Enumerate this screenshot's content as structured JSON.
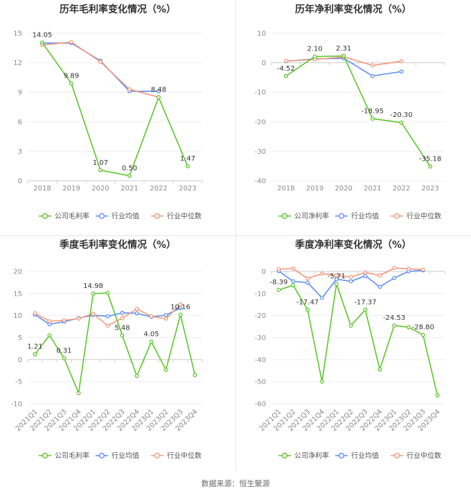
{
  "colors": {
    "company": "#5cc52b",
    "avg": "#5b8ff9",
    "median": "#f4987a",
    "axis": "#cccccc",
    "grid": "#eeeeee"
  },
  "legend": {
    "company_gross": "公司毛利率",
    "company_net": "公司净利率",
    "avg": "行业均值",
    "median": "行业中位数"
  },
  "source": "数据来源：恒生聚源",
  "chart_data": [
    {
      "type": "line",
      "title": "历年毛利率变化情况（%）",
      "categories": [
        "2018",
        "2019",
        "2020",
        "2021",
        "2022",
        "2023"
      ],
      "ylim": [
        0,
        15
      ],
      "yticks": [
        0,
        3,
        6,
        9,
        12,
        15
      ],
      "series": [
        {
          "name": "公司毛利率",
          "values": [
            14.05,
            9.89,
            1.07,
            0.5,
            8.48,
            1.47
          ]
        },
        {
          "name": "行业均值",
          "values": [
            14.0,
            14.0,
            12.2,
            9.1,
            9.1,
            null
          ]
        },
        {
          "name": "行业中位数",
          "values": [
            13.8,
            14.1,
            12.1,
            9.3,
            8.5,
            null
          ]
        }
      ],
      "labels": [
        {
          "i": 0,
          "text": "14.05"
        },
        {
          "i": 1,
          "text": "9.89"
        },
        {
          "i": 2,
          "text": "1.07"
        },
        {
          "i": 3,
          "text": "0.50"
        },
        {
          "i": 4,
          "text": "8.48"
        },
        {
          "i": 5,
          "text": "1.47"
        }
      ],
      "legend": [
        "公司毛利率",
        "行业均值",
        "行业中位数"
      ]
    },
    {
      "type": "line",
      "title": "历年净利率变化情况（%）",
      "categories": [
        "2018",
        "2019",
        "2020",
        "2021",
        "2022",
        "2023"
      ],
      "ylim": [
        -40,
        10
      ],
      "yticks": [
        -40,
        -30,
        -20,
        -10,
        0,
        10
      ],
      "series": [
        {
          "name": "公司净利率",
          "values": [
            -4.52,
            2.1,
            2.31,
            -18.95,
            -20.3,
            -35.18
          ]
        },
        {
          "name": "行业均值",
          "values": [
            0.5,
            1.3,
            1.5,
            -4.5,
            -3.0,
            null
          ]
        },
        {
          "name": "行业中位数",
          "values": [
            0.6,
            1.1,
            2.0,
            -0.9,
            0.5,
            null
          ]
        }
      ],
      "labels": [
        {
          "i": 0,
          "text": "-4.52"
        },
        {
          "i": 1,
          "text": "2.10"
        },
        {
          "i": 2,
          "text": "2.31"
        },
        {
          "i": 3,
          "text": "-18.95"
        },
        {
          "i": 4,
          "text": "-20.30"
        },
        {
          "i": 5,
          "text": "-35.18"
        }
      ],
      "legend": [
        "公司净利率",
        "行业均值",
        "行业中位数"
      ]
    },
    {
      "type": "line",
      "title": "季度毛利率变化情况（%）",
      "categories": [
        "2021Q1",
        "2021Q2",
        "2021Q3",
        "2021Q4",
        "2022Q1",
        "2022Q2",
        "2022Q3",
        "2022Q4",
        "2023Q1",
        "2023Q2",
        "2023Q3",
        "2023Q4"
      ],
      "ylim": [
        -10,
        20
      ],
      "yticks": [
        -10,
        -5,
        0,
        5,
        10,
        15,
        20
      ],
      "series": [
        {
          "name": "公司毛利率",
          "values": [
            1.21,
            5.5,
            0.31,
            -7.6,
            14.98,
            15.1,
            5.48,
            -3.7,
            4.05,
            -2.3,
            10.16,
            -3.5
          ]
        },
        {
          "name": "行业均值",
          "values": [
            10.2,
            8.0,
            8.6,
            9.4,
            10.1,
            9.8,
            10.6,
            10.5,
            9.7,
            10.1,
            11.7,
            null
          ]
        },
        {
          "name": "行业中位数",
          "values": [
            10.5,
            8.7,
            8.9,
            9.3,
            10.4,
            7.7,
            9.4,
            11.5,
            9.8,
            9.3,
            12.5,
            null
          ]
        }
      ],
      "labels": [
        {
          "i": 0,
          "text": "1.21"
        },
        {
          "i": 2,
          "text": "0.31"
        },
        {
          "i": 4,
          "text": "14.98"
        },
        {
          "i": 6,
          "text": "5.48"
        },
        {
          "i": 8,
          "text": "4.05"
        },
        {
          "i": 10,
          "text": "10.16"
        }
      ],
      "legend": [
        "公司毛利率",
        "行业均值",
        "行业中位数"
      ]
    },
    {
      "type": "line",
      "title": "季度净利率变化情况（%）",
      "categories": [
        "2021Q1",
        "2021Q2",
        "2021Q3",
        "2021Q4",
        "2022Q1",
        "2022Q2",
        "2022Q3",
        "2022Q4",
        "2023Q1",
        "2023Q2",
        "2023Q3",
        "2023Q4"
      ],
      "ylim": [
        -60,
        0
      ],
      "yticks": [
        -60,
        -50,
        -40,
        -30,
        -20,
        -10,
        0
      ],
      "series": [
        {
          "name": "公司净利率",
          "values": [
            -8.39,
            -6.3,
            -17.47,
            -50.0,
            -5.71,
            -24.6,
            -17.37,
            -44.5,
            -24.53,
            -25.3,
            -28.8,
            -56.3
          ]
        },
        {
          "name": "行业均值",
          "values": [
            0.2,
            -4.5,
            -5.1,
            -12.0,
            -3.5,
            -4.5,
            -2.0,
            -7.0,
            -3.0,
            0.0,
            0.5,
            null
          ]
        },
        {
          "name": "行业中位数",
          "values": [
            1.0,
            1.3,
            -3.2,
            -1.0,
            -1.8,
            -2.5,
            -0.5,
            -1.8,
            1.5,
            1.2,
            0.8,
            null
          ]
        }
      ],
      "labels": [
        {
          "i": 0,
          "text": "-8.39"
        },
        {
          "i": 2,
          "text": "-17.47"
        },
        {
          "i": 4,
          "text": "-5.71"
        },
        {
          "i": 6,
          "text": "-17.37"
        },
        {
          "i": 8,
          "text": "-24.53"
        },
        {
          "i": 10,
          "text": "-28.80"
        }
      ],
      "legend": [
        "公司净利率",
        "行业均值",
        "行业中位数"
      ]
    }
  ]
}
